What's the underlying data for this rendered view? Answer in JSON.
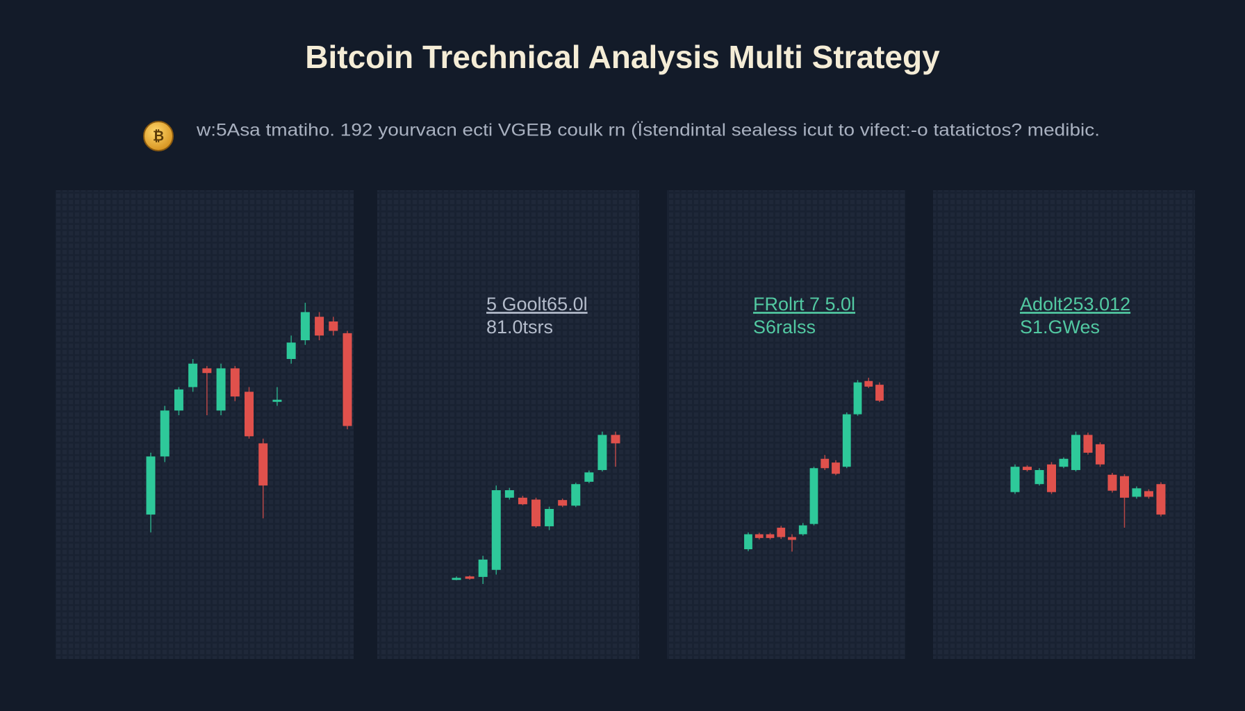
{
  "title": "Bitcoin Trechnical Analysis Multi Strategy",
  "subtitle": "w:5Asa tmatiho. 192 yourvacn ecti VGEB coulk rn (Ïstendintal sealess icut to vifect:-o tatatictos? medibic.",
  "chart_data": [
    {
      "type": "candlestick",
      "ylim": [
        0,
        100
      ],
      "up_color": "#2ec99a",
      "down_color": "#e0514c",
      "open": [
        30.8,
        43.2,
        53,
        58,
        62,
        53,
        62,
        57,
        46,
        55,
        64,
        68,
        73,
        72,
        69.5
      ],
      "close": [
        43.2,
        53,
        57.5,
        63,
        61,
        62,
        56,
        47.5,
        37,
        55.3,
        67.5,
        74,
        69,
        70,
        49.7
      ],
      "high": [
        44,
        54,
        58,
        64,
        62.5,
        63,
        62.5,
        58,
        47,
        58,
        69,
        76,
        74,
        73,
        70
      ],
      "low": [
        27,
        42,
        52,
        57,
        52,
        52,
        55,
        47,
        30,
        54,
        63,
        67,
        68,
        69,
        49
      ]
    },
    {
      "type": "candlestick",
      "ylim": [
        0,
        100
      ],
      "up_color": "#2ec99a",
      "down_color": "#e0514c",
      "annotations": [
        "5 Goolt65.0l",
        "81.0tsrs"
      ],
      "annotation_color": "#b4bccb",
      "open": [
        17,
        17.6,
        17.5,
        19,
        34.4,
        34.4,
        34,
        28.3,
        33.9,
        32.7,
        37.8,
        40.3,
        47.8
      ],
      "close": [
        17.3,
        17.1,
        21.2,
        36,
        36,
        33,
        28.3,
        32,
        32.7,
        37.3,
        39.8,
        47.8,
        46
      ],
      "high": [
        17.6,
        17.8,
        22,
        37,
        36.5,
        34.8,
        34.4,
        32.5,
        34.2,
        37.6,
        40.2,
        48.5,
        48.5
      ],
      "low": [
        16.8,
        16.9,
        16,
        18,
        34,
        32.8,
        28,
        27.5,
        32.4,
        32.4,
        37.5,
        40,
        41
      ]
    },
    {
      "type": "candlestick",
      "ylim": [
        0,
        100
      ],
      "up_color": "#2ec99a",
      "down_color": "#e0514c",
      "annotations": [
        "FRolrt 7 5.0l",
        "S6ralss"
      ],
      "annotation_color": "#52c9a2",
      "open": [
        23.4,
        26.6,
        26.6,
        28,
        26,
        26.6,
        28.8,
        42.7,
        41.9,
        41,
        52.2,
        59.3,
        58.5
      ],
      "close": [
        26.6,
        25.8,
        25.8,
        26,
        25.4,
        28.5,
        40.7,
        40.7,
        39.5,
        52.2,
        59,
        58.1,
        55.1
      ],
      "high": [
        27,
        26.9,
        26.9,
        28.4,
        26.6,
        29,
        41,
        43.5,
        42.4,
        52.6,
        59.5,
        60,
        59
      ],
      "low": [
        23,
        25.5,
        25.5,
        25.6,
        22.9,
        26.3,
        28.5,
        40.3,
        39.2,
        40.7,
        51.9,
        57.8,
        54.8
      ]
    },
    {
      "type": "candlestick",
      "ylim": [
        0,
        100
      ],
      "up_color": "#2ec99a",
      "down_color": "#e0514c",
      "annotations": [
        "Adolt253.012",
        "S1.GWes"
      ],
      "annotation_color": "#52c9a2",
      "open": [
        35.6,
        41,
        37.3,
        41.5,
        41,
        40.3,
        47.8,
        45.8,
        39.3,
        39,
        34.6,
        35.8,
        37.3
      ],
      "close": [
        41,
        40.3,
        40.3,
        35.6,
        42.7,
        47.8,
        44,
        41.5,
        35.9,
        34.4,
        36.4,
        34.6,
        30.8
      ],
      "high": [
        41.5,
        41.3,
        40.7,
        42,
        43,
        48.5,
        48.3,
        46.2,
        39.7,
        39.4,
        36.8,
        36.2,
        37.7
      ],
      "low": [
        35.2,
        40,
        37,
        35.2,
        40.7,
        40,
        43.6,
        41,
        35.5,
        28,
        34.2,
        34.2,
        30.4
      ]
    }
  ]
}
